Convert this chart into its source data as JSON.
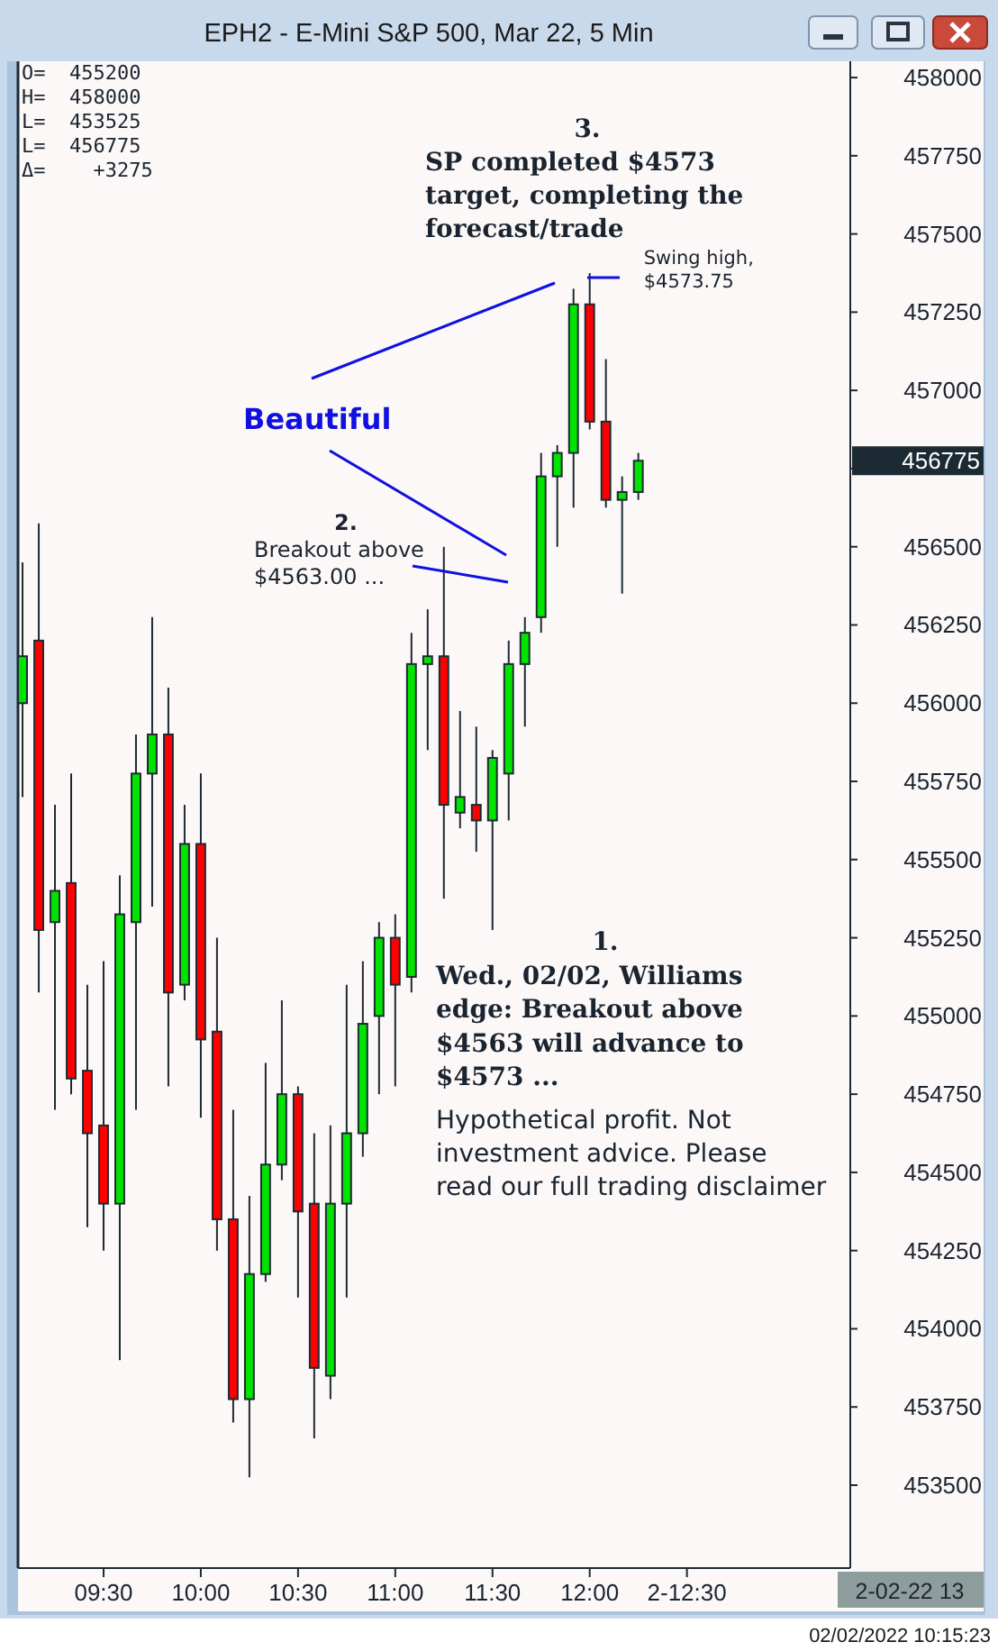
{
  "chart_data": {
    "type": "candlestick",
    "title": "EPH2 - E-Mini S&P 500, Mar 22, 5 Min",
    "x": [
      9.0833,
      9.1667,
      9.25,
      9.3333,
      9.4167,
      9.5,
      9.5833,
      9.6667,
      9.75,
      9.8333,
      9.9167,
      10,
      10.0833,
      10.1667,
      10.25,
      10.3333,
      10.4167,
      10.5,
      10.5833,
      10.6667,
      10.75,
      10.8333,
      10.9167,
      11,
      11.0833,
      11.1667,
      11.25,
      11.3333,
      11.4167,
      11.5,
      11.5833,
      11.6667,
      11.75,
      11.8333,
      11.9167,
      12,
      12.0833,
      12.1667,
      12.25
    ],
    "ohlc": [
      [
        456000,
        456450,
        455700,
        456150
      ],
      [
        456200,
        456575,
        455075,
        455275
      ],
      [
        455300,
        455675,
        454700,
        455400
      ],
      [
        455425,
        455775,
        454750,
        454800
      ],
      [
        454825,
        455100,
        454325,
        454625
      ],
      [
        454650,
        455175,
        454250,
        454400
      ],
      [
        454400,
        455450,
        453900,
        455325
      ],
      [
        455300,
        455900,
        454700,
        455775
      ],
      [
        455775,
        456275,
        455350,
        455900
      ],
      [
        455900,
        456050,
        454775,
        455075
      ],
      [
        455100,
        455675,
        455050,
        455550
      ],
      [
        455550,
        455775,
        454675,
        454925
      ],
      [
        454950,
        455250,
        454250,
        454350
      ],
      [
        454350,
        454700,
        453700,
        453775
      ],
      [
        453775,
        454425,
        453525,
        454175
      ],
      [
        454175,
        454850,
        454150,
        454525
      ],
      [
        454525,
        455050,
        454475,
        454750
      ],
      [
        454750,
        454775,
        454100,
        454375
      ],
      [
        454400,
        454625,
        453650,
        453875
      ],
      [
        453850,
        454650,
        453775,
        454400
      ],
      [
        454400,
        455100,
        454100,
        454625
      ],
      [
        454625,
        455175,
        454550,
        454975
      ],
      [
        455000,
        455300,
        454750,
        455250
      ],
      [
        455250,
        455325,
        454775,
        455100
      ],
      [
        455125,
        456225,
        455075,
        456125
      ],
      [
        456125,
        456300,
        455850,
        456150
      ],
      [
        456150,
        456500,
        455375,
        455675
      ],
      [
        455650,
        455975,
        455600,
        455700
      ],
      [
        455675,
        455925,
        455525,
        455625
      ],
      [
        455625,
        455850,
        455275,
        455825
      ],
      [
        455775,
        456200,
        455625,
        456125
      ],
      [
        456125,
        456275,
        455925,
        456225
      ],
      [
        456275,
        456800,
        456225,
        456725
      ],
      [
        456725,
        456825,
        456500,
        456800
      ],
      [
        456800,
        457325,
        456625,
        457275
      ],
      [
        457275,
        457375,
        456875,
        456900
      ],
      [
        456900,
        457100,
        456625,
        456650
      ],
      [
        456650,
        456725,
        456350,
        456675
      ],
      [
        456675,
        456800,
        456650,
        456775
      ]
    ],
    "colors": [
      "#00e400",
      "#ff0000",
      "#00e400",
      "#ff0000",
      "#ff0000",
      "#ff0000",
      "#00e400",
      "#00e400",
      "#00e400",
      "#ff0000",
      "#00e400",
      "#ff0000",
      "#ff0000",
      "#ff0000",
      "#00e400",
      "#00e400",
      "#00e400",
      "#ff0000",
      "#ff0000",
      "#00e400",
      "#00e400",
      "#00e400",
      "#00e400",
      "#ff0000",
      "#00e400",
      "#00e400",
      "#ff0000",
      "#00e400",
      "#ff0000",
      "#00e400",
      "#00e400",
      "#00e400",
      "#00e400",
      "#00e400",
      "#00e400",
      "#ff0000",
      "#ff0000",
      "#00e400",
      "#00e400"
    ],
    "xlim": [
      9.06,
      13.34
    ],
    "xticks": [
      {
        "value": 9.5,
        "label": "09:30"
      },
      {
        "value": 10,
        "label": "10:00"
      },
      {
        "value": 10.5,
        "label": "10:30"
      },
      {
        "value": 11,
        "label": "11:00"
      },
      {
        "value": 11.5,
        "label": "11:30"
      },
      {
        "value": 12,
        "label": "12:00"
      },
      {
        "value": 12.5,
        "label": "2-12:30"
      }
    ],
    "ylim": [
      453235,
      458052
    ],
    "yticks": [
      453500,
      453750,
      454000,
      454250,
      454500,
      454750,
      455000,
      455250,
      455500,
      455750,
      456000,
      456250,
      456500,
      {
        "value": 456750,
        "label": null
      },
      457000,
      457250,
      457500,
      457750,
      458000
    ],
    "annotations": [
      "O=  455200",
      "H=  458000",
      "L=  453525",
      "L=  456775",
      "Δ=    +3275",
      "3.\nSP completed $4573\ntarget, completing the\nforecast/trade",
      {
        "text": "Swing high,\n$4573.75",
        "x": 12,
        "y": 457375
      },
      "Beautiful",
      "2.\nBreakout above\n$4563.00 ...",
      "1.\nWed., 02/02, Williams\nedge: Breakout above\n$4563 will advance to\n$4573 ...",
      "Hypothetical profit. Not\ninvestment advice. Please\nread our full trading disclaimer",
      "456775",
      "2-02-22 13",
      "02/02/2022 10:15:23"
    ]
  }
}
